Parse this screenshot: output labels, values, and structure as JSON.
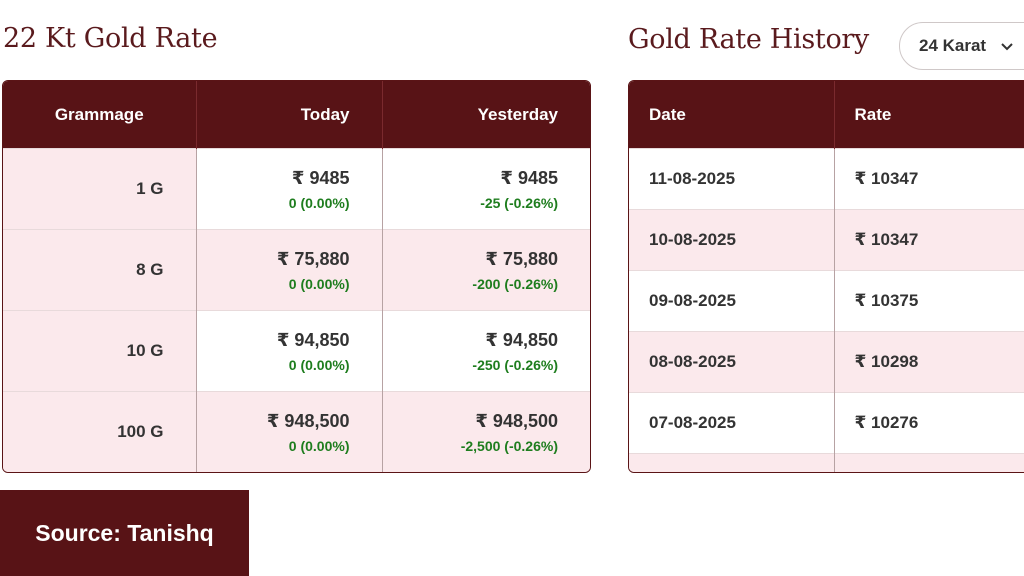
{
  "left": {
    "title": "22 Kt Gold Rate",
    "headers": [
      "Grammage",
      "Today",
      "Yesterday"
    ],
    "rows": [
      {
        "gram": "1 G",
        "today": "₹ 9485",
        "today_change": "0 (0.00%)",
        "yesterday": "₹ 9485",
        "yesterday_change": "-25 (-0.26%)"
      },
      {
        "gram": "8 G",
        "today": "₹ 75,880",
        "today_change": "0 (0.00%)",
        "yesterday": "₹ 75,880",
        "yesterday_change": "-200 (-0.26%)"
      },
      {
        "gram": "10 G",
        "today": "₹ 94,850",
        "today_change": "0 (0.00%)",
        "yesterday": "₹ 94,850",
        "yesterday_change": "-250 (-0.26%)"
      },
      {
        "gram": "100 G",
        "today": "₹ 948,500",
        "today_change": "0 (0.00%)",
        "yesterday": "₹ 948,500",
        "yesterday_change": "-2,500 (-0.26%)"
      }
    ]
  },
  "right": {
    "title": "Gold Rate History",
    "karat_select": "24 Karat",
    "headers": [
      "Date",
      "Rate"
    ],
    "rows": [
      {
        "date": "11-08-2025",
        "rate": "₹ 10347"
      },
      {
        "date": "10-08-2025",
        "rate": "₹ 10347"
      },
      {
        "date": "09-08-2025",
        "rate": "₹ 10375"
      },
      {
        "date": "08-08-2025",
        "rate": "₹ 10298"
      },
      {
        "date": "07-08-2025",
        "rate": "₹ 10276"
      }
    ]
  },
  "source": "Source: Tanishq",
  "colors": {
    "maroon": "#581316",
    "pink_row": "#fbe9ec",
    "green": "#1e7d1e"
  }
}
